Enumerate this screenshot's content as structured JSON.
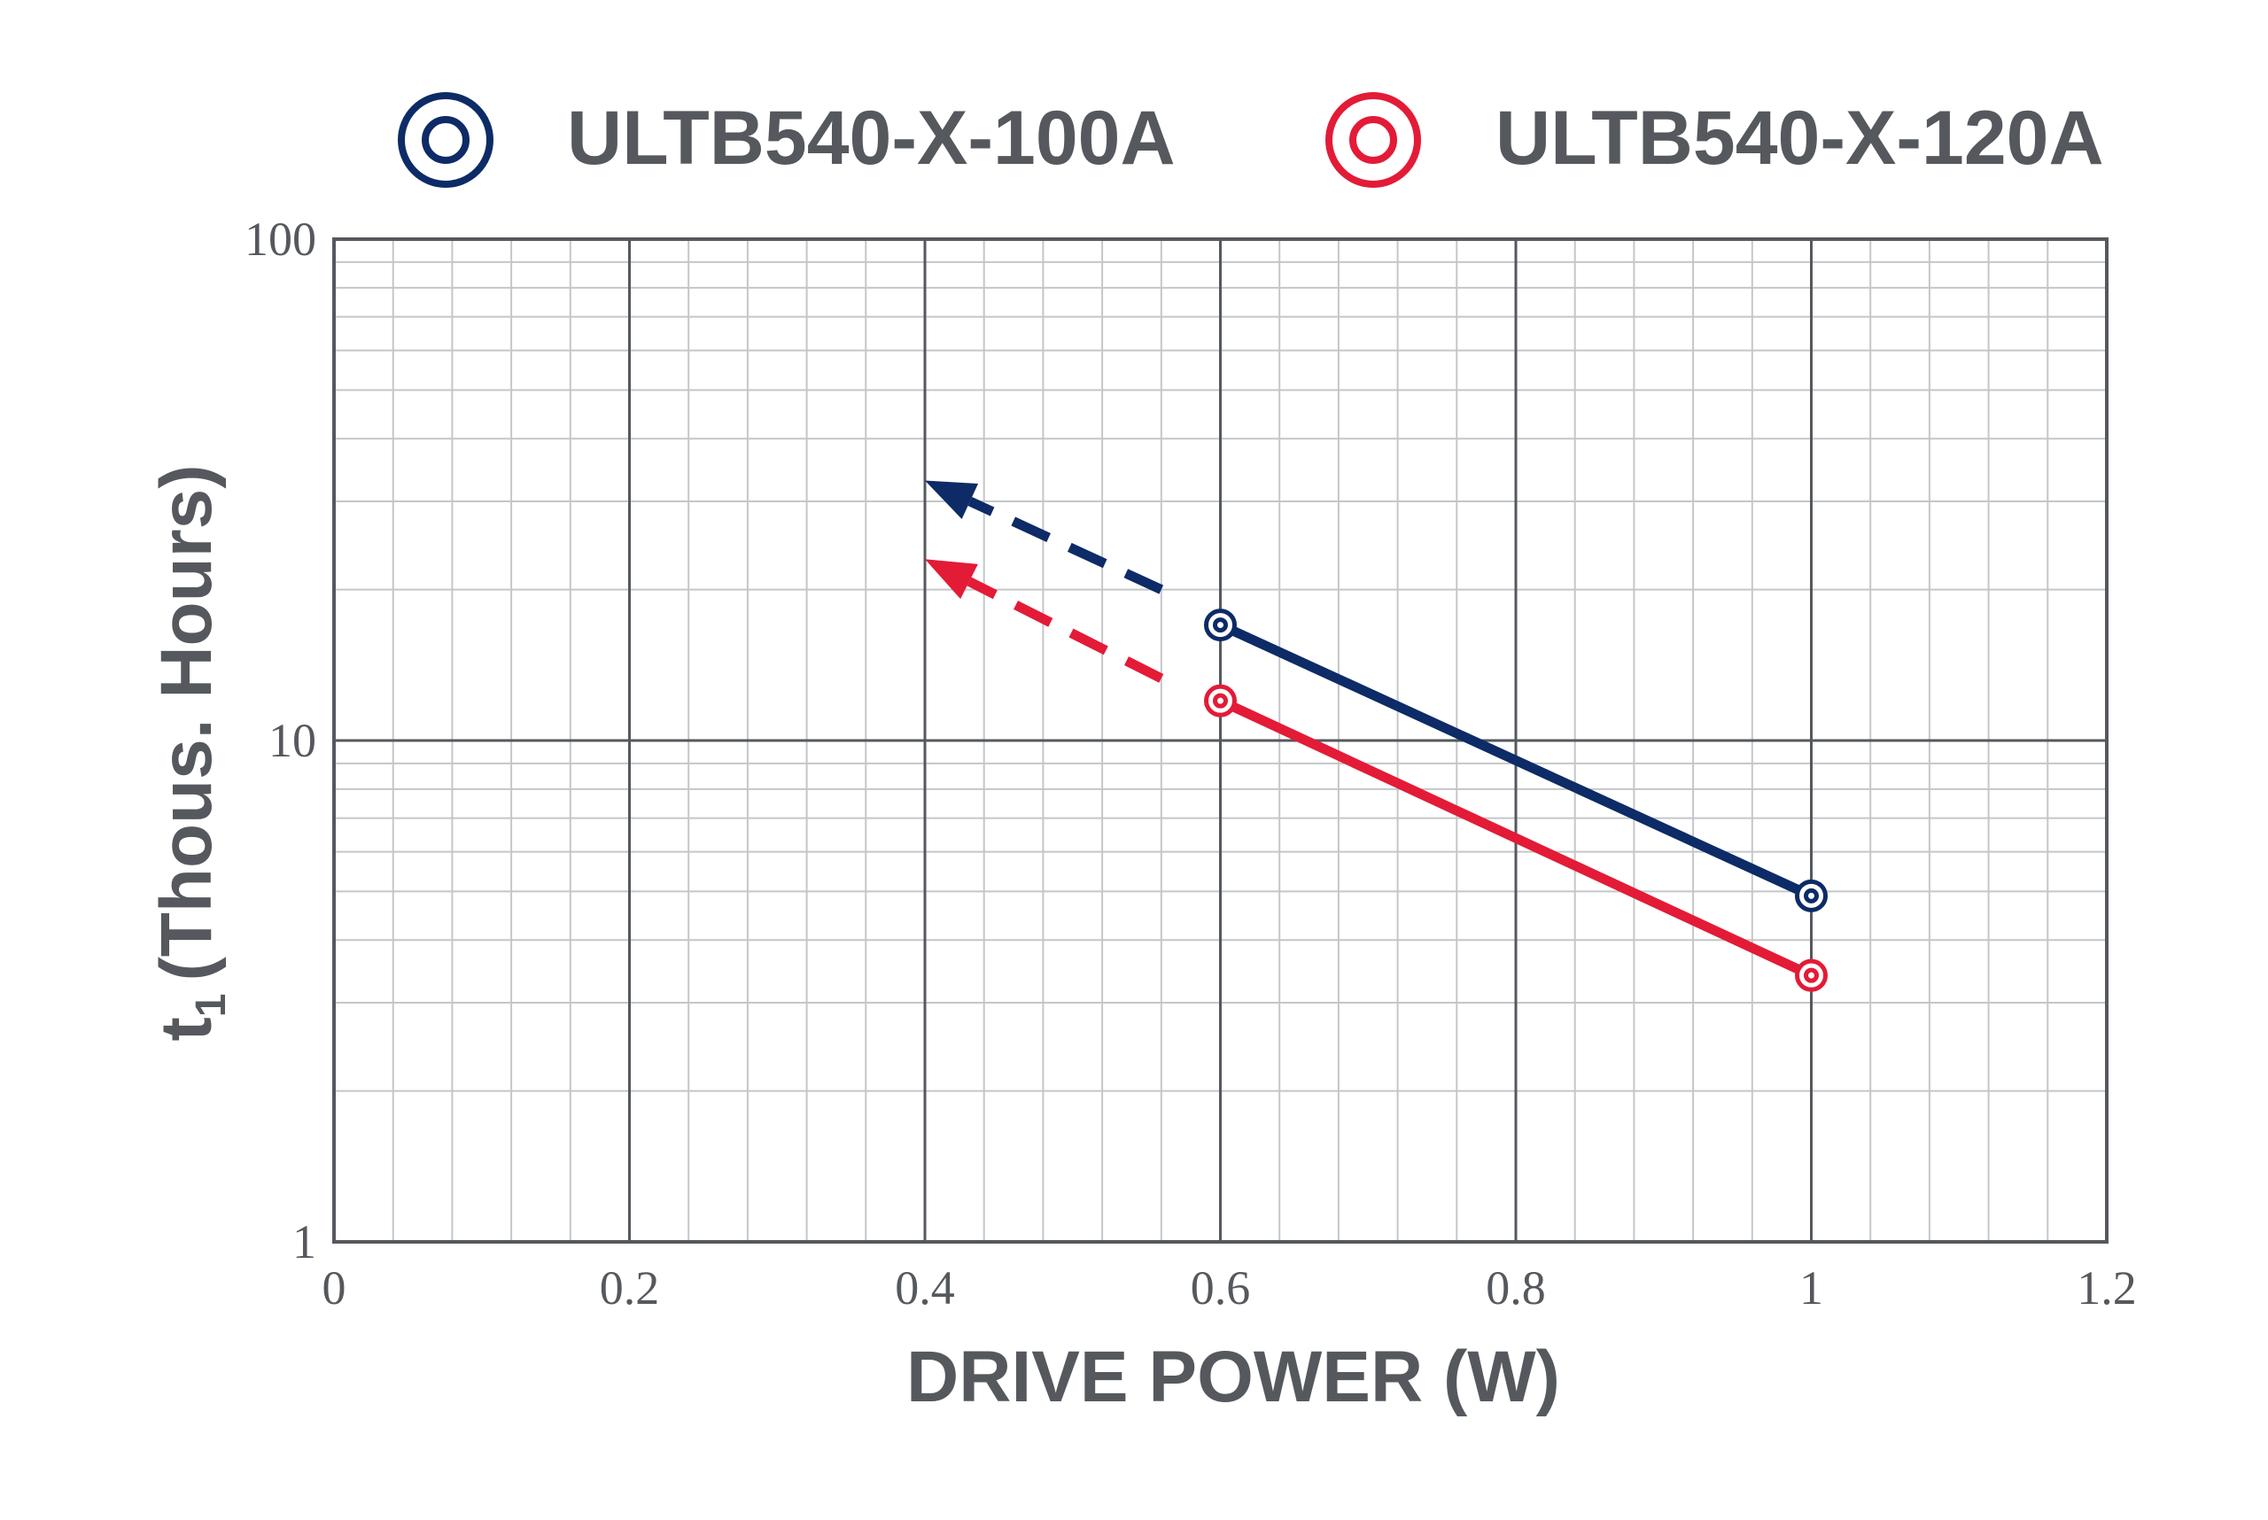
{
  "chart_data": {
    "type": "line",
    "title": "",
    "xlabel": "DRIVE POWER (W)",
    "ylabel": "(Thous. Hours)",
    "ylabel_prefix": "t",
    "ylabel_subscript": "1",
    "x_scale": "linear",
    "y_scale": "log",
    "xlim": [
      0,
      1.2
    ],
    "ylim": [
      1,
      100
    ],
    "x_ticks": [
      0,
      0.2,
      0.4,
      0.6,
      0.8,
      1,
      1.2
    ],
    "x_tick_labels": [
      "0",
      "0.2",
      "0.4",
      "0.6",
      "0.8",
      "1",
      "1.2"
    ],
    "y_ticks": [
      1,
      10,
      100
    ],
    "y_tick_labels": [
      "1",
      "10",
      "100"
    ],
    "grid": true,
    "legend_position": "top",
    "series": [
      {
        "name": "ULTB540-X-100A",
        "color": "#0d2b66",
        "marker": "double-circle",
        "x": [
          0.6,
          1.0
        ],
        "y": [
          17,
          4.9
        ],
        "extrapolation": {
          "style": "dashed-arrow",
          "x": [
            0.56,
            0.4
          ],
          "y": [
            20,
            33
          ]
        }
      },
      {
        "name": "ULTB540-X-120A",
        "color": "#e31b37",
        "marker": "double-circle",
        "x": [
          0.6,
          1.0
        ],
        "y": [
          12,
          3.4
        ],
        "extrapolation": {
          "style": "dashed-arrow",
          "x": [
            0.56,
            0.4
          ],
          "y": [
            13.3,
            23
          ]
        }
      }
    ]
  }
}
